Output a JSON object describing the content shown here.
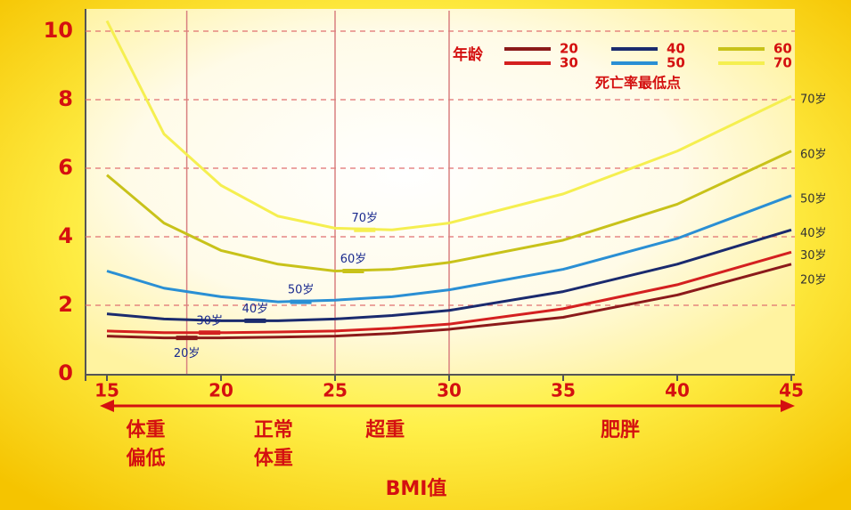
{
  "chart_data": {
    "type": "line",
    "x_label": "BMI值",
    "legend_title": "年龄",
    "minima_title": "死亡率最低点",
    "x": [
      15,
      17.5,
      20,
      22.5,
      25,
      27.5,
      30,
      35,
      40,
      45
    ],
    "series": [
      {
        "name": "20",
        "end_label": "20岁",
        "color": "#8b1a1a",
        "values": [
          1.1,
          1.05,
          1.05,
          1.07,
          1.1,
          1.18,
          1.3,
          1.65,
          2.3,
          3.2
        ]
      },
      {
        "name": "30",
        "end_label": "30岁",
        "color": "#d42020",
        "values": [
          1.25,
          1.2,
          1.2,
          1.22,
          1.25,
          1.33,
          1.45,
          1.9,
          2.6,
          3.55
        ]
      },
      {
        "name": "40",
        "end_label": "40岁",
        "color": "#1a2a6e",
        "values": [
          1.75,
          1.6,
          1.55,
          1.55,
          1.6,
          1.7,
          1.85,
          2.4,
          3.2,
          4.2
        ]
      },
      {
        "name": "50",
        "end_label": "50岁",
        "color": "#2a8fd4",
        "values": [
          3.0,
          2.5,
          2.25,
          2.1,
          2.15,
          2.25,
          2.45,
          3.05,
          3.95,
          5.2
        ]
      },
      {
        "name": "60",
        "end_label": "60岁",
        "color": "#c8c21a",
        "values": [
          5.8,
          4.4,
          3.6,
          3.2,
          3.0,
          3.05,
          3.25,
          3.9,
          4.95,
          6.5
        ]
      },
      {
        "name": "70",
        "end_label": "70岁",
        "color": "#f5ef50",
        "values": [
          10.3,
          7.0,
          5.5,
          4.6,
          4.25,
          4.2,
          4.4,
          5.25,
          6.5,
          8.1
        ]
      }
    ],
    "minima": [
      {
        "label": "20岁",
        "x": 18.5,
        "y": 1.05
      },
      {
        "label": "30岁",
        "x": 19.5,
        "y": 1.2
      },
      {
        "label": "40岁",
        "x": 21.5,
        "y": 1.55
      },
      {
        "label": "50岁",
        "x": 23.5,
        "y": 2.1
      },
      {
        "label": "60岁",
        "x": 25.8,
        "y": 3.0
      },
      {
        "label": "70岁",
        "x": 26.3,
        "y": 4.2
      }
    ],
    "zones": [
      {
        "lines": [
          "体重",
          "偏低"
        ],
        "x": 16.7
      },
      {
        "lines": [
          "正常",
          "体重"
        ],
        "x": 22.3
      },
      {
        "lines": [
          "超重"
        ],
        "x": 27.2
      },
      {
        "lines": [
          "肥胖"
        ],
        "x": 37.5
      }
    ],
    "boundaries": [
      18.5,
      25,
      30
    ],
    "xlim": [
      15,
      45
    ],
    "xticks": [
      15,
      20,
      25,
      30,
      35,
      40,
      45
    ],
    "ylim": [
      0,
      10
    ],
    "yticks": [
      0,
      2,
      4,
      6,
      8,
      10
    ],
    "grid": true
  }
}
